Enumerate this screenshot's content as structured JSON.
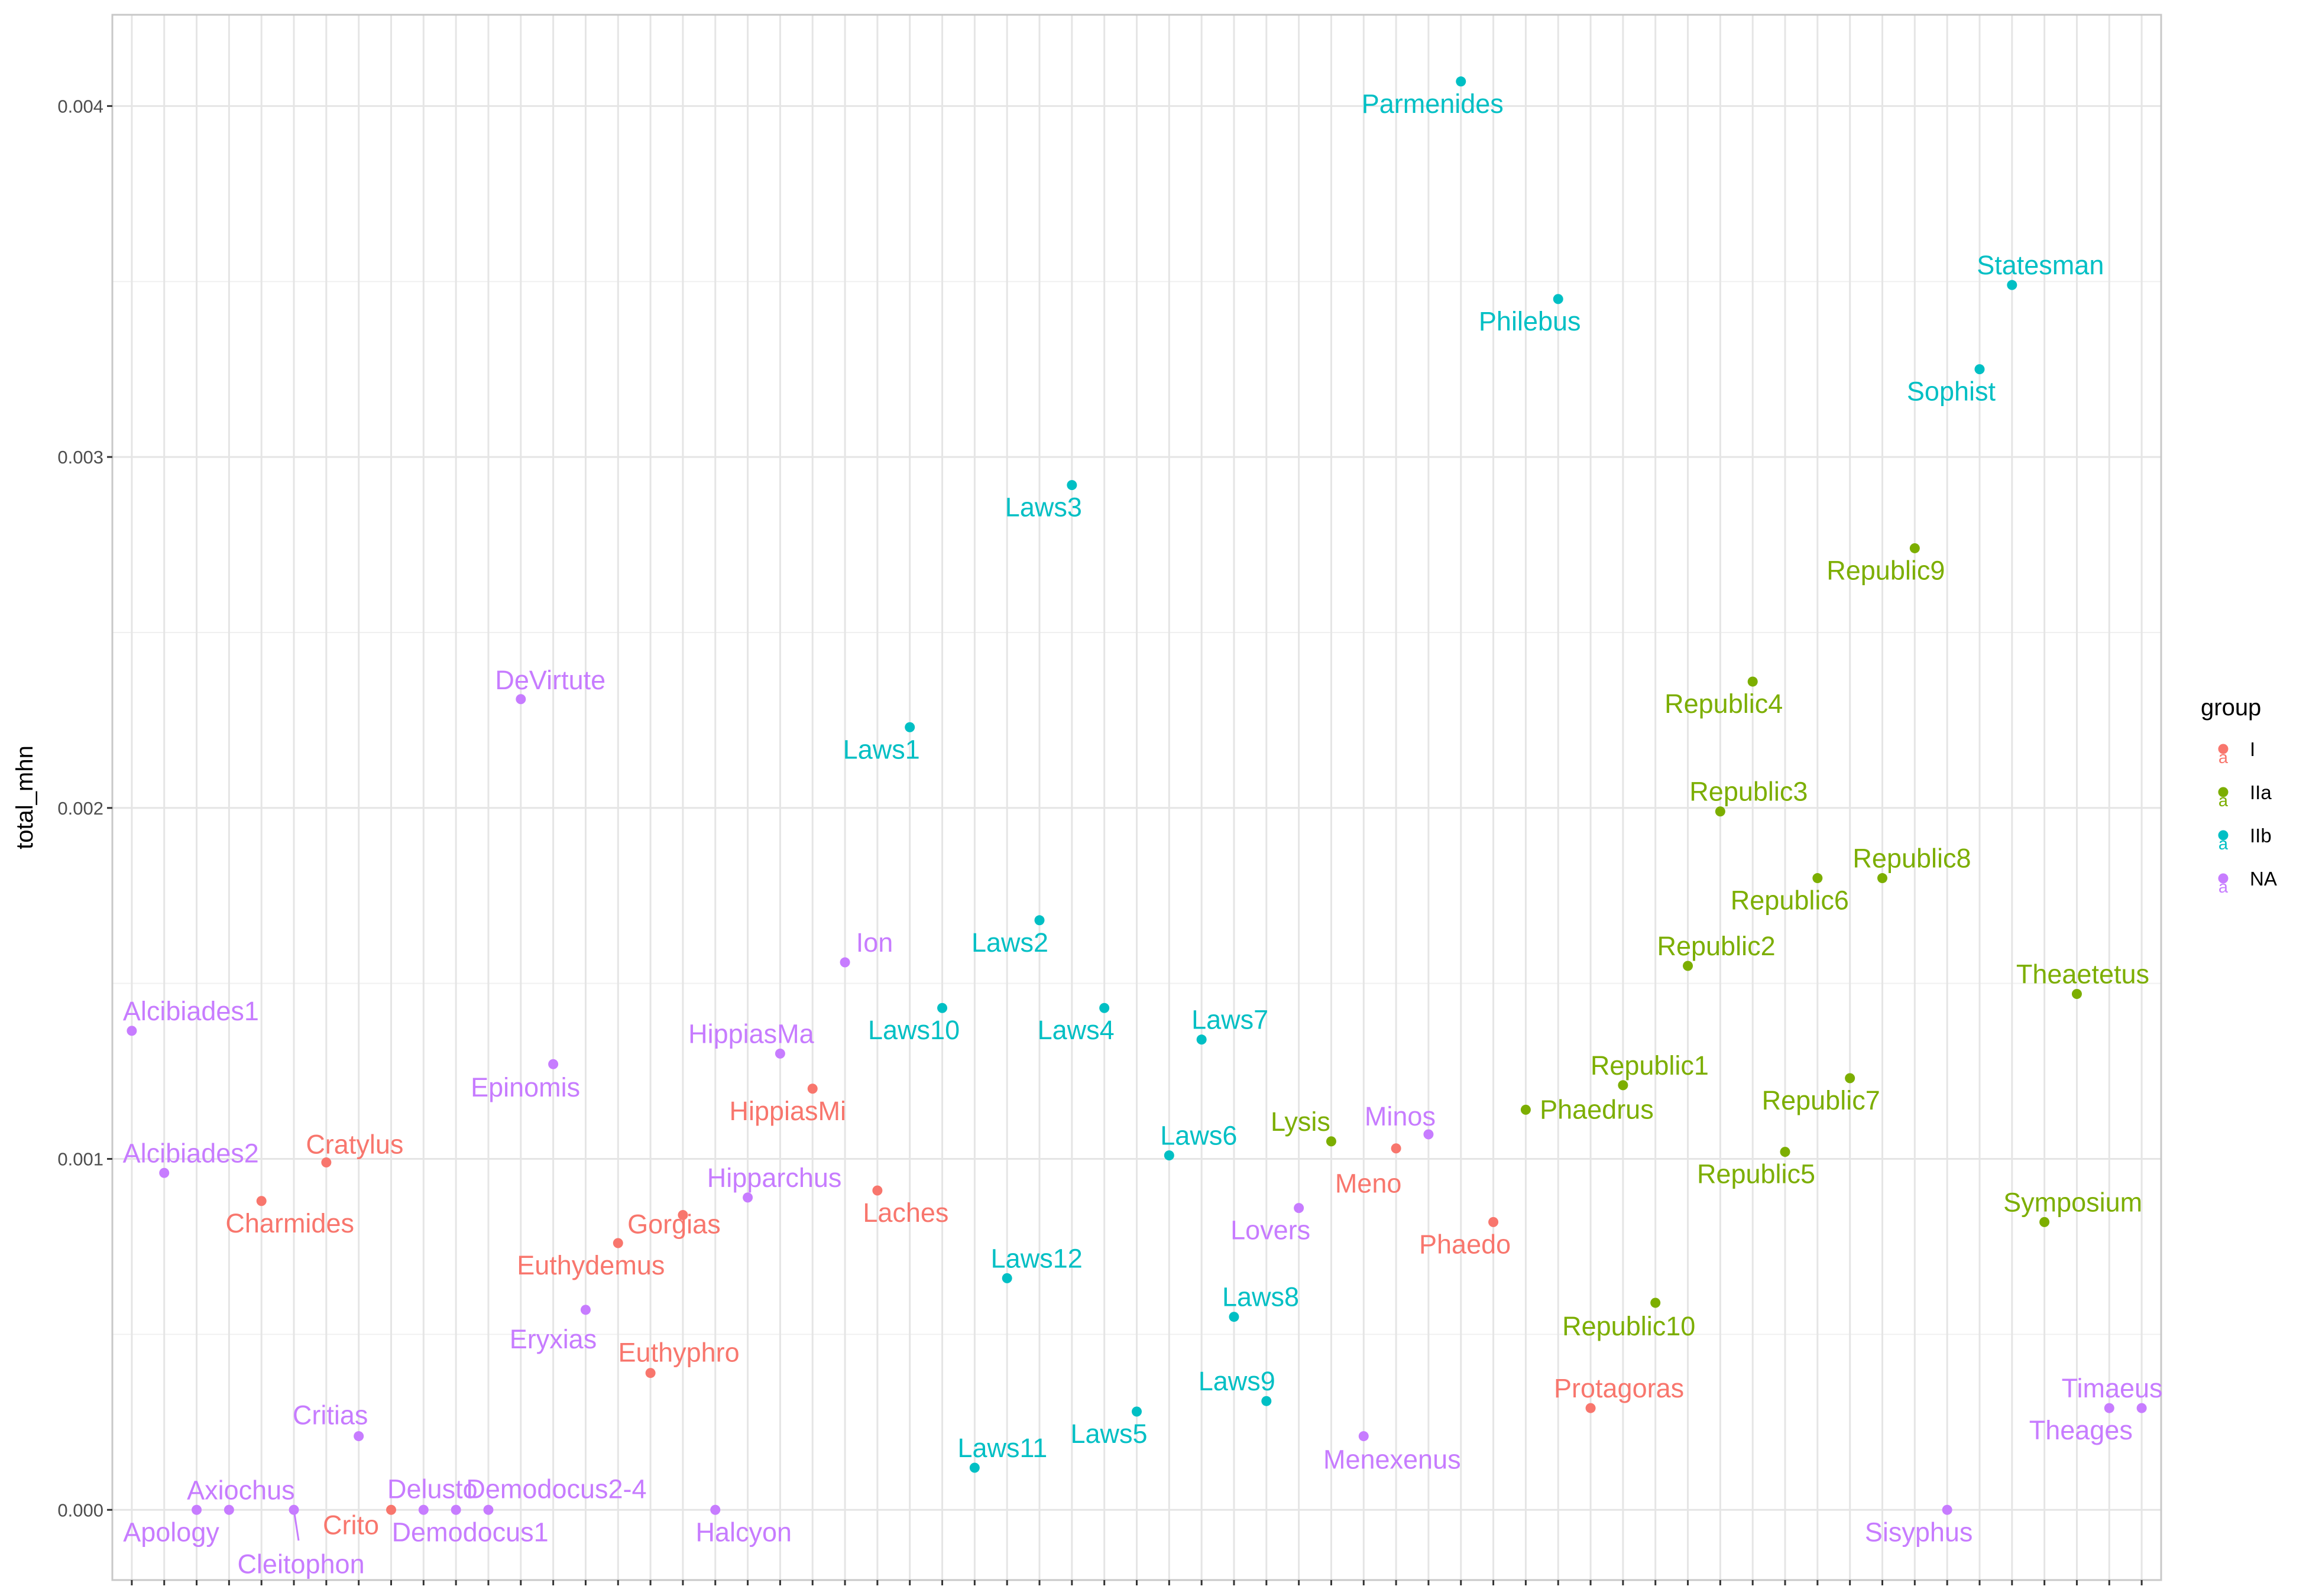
{
  "chart_data": {
    "type": "scatter",
    "title": "",
    "xlabel": "",
    "ylabel": "total_mhn",
    "ylim": [
      -0.0002,
      0.00426
    ],
    "y_ticks": [
      0.0,
      0.001,
      0.002,
      0.003,
      0.004
    ],
    "y_tick_labels": [
      "0.000",
      "0.001",
      "0.002",
      "0.003",
      "0.004"
    ],
    "grid": true,
    "legend": {
      "title": "group",
      "position": "right"
    },
    "colors": {
      "I": "#F8766D",
      "IIa": "#7CAE00",
      "IIb": "#00BFC4",
      "NA": "#C77CFF"
    },
    "groups": [
      "I",
      "IIa",
      "IIb",
      "NA"
    ],
    "points": [
      {
        "label": "Alcibiades1",
        "group": "NA",
        "x": 1,
        "y": 0.001365
      },
      {
        "label": "Alcibiades2",
        "group": "NA",
        "x": 2,
        "y": 0.00096
      },
      {
        "label": "Apology",
        "group": "NA",
        "x": 3,
        "y": 0.0
      },
      {
        "label": "Axiochus",
        "group": "NA",
        "x": 4,
        "y": 0.0
      },
      {
        "label": "Charmides",
        "group": "I",
        "x": 5,
        "y": 0.00088
      },
      {
        "label": "Cleitophon",
        "group": "NA",
        "x": 6,
        "y": 0.0
      },
      {
        "label": "Cratylus",
        "group": "I",
        "x": 7,
        "y": 0.00099
      },
      {
        "label": "Critias",
        "group": "NA",
        "x": 8,
        "y": 0.00021
      },
      {
        "label": "Crito",
        "group": "I",
        "x": 9,
        "y": 0.0
      },
      {
        "label": "Delusto",
        "group": "NA",
        "x": 10,
        "y": 0.0
      },
      {
        "label": "Demodocus1",
        "group": "NA",
        "x": 11,
        "y": 0.0
      },
      {
        "label": "Demodocus2-4",
        "group": "NA",
        "x": 12,
        "y": 0.0
      },
      {
        "label": "DeVirtute",
        "group": "NA",
        "x": 13,
        "y": 0.00231
      },
      {
        "label": "Epinomis",
        "group": "NA",
        "x": 14,
        "y": 0.00127
      },
      {
        "label": "Eryxias",
        "group": "NA",
        "x": 15,
        "y": 0.00057
      },
      {
        "label": "Euthydemus",
        "group": "I",
        "x": 16,
        "y": 0.00076
      },
      {
        "label": "Euthyphro",
        "group": "I",
        "x": 17,
        "y": 0.00039
      },
      {
        "label": "Gorgias",
        "group": "I",
        "x": 18,
        "y": 0.00084
      },
      {
        "label": "Halcyon",
        "group": "NA",
        "x": 19,
        "y": 0.0
      },
      {
        "label": "Hipparchus",
        "group": "NA",
        "x": 20,
        "y": 0.00089
      },
      {
        "label": "HippiasMa",
        "group": "NA",
        "x": 21,
        "y": 0.0013
      },
      {
        "label": "HippiasMi",
        "group": "I",
        "x": 22,
        "y": 0.0012
      },
      {
        "label": "Ion",
        "group": "NA",
        "x": 23,
        "y": 0.00156
      },
      {
        "label": "Laches",
        "group": "I",
        "x": 24,
        "y": 0.00091
      },
      {
        "label": "Laws1",
        "group": "IIb",
        "x": 25,
        "y": 0.00223
      },
      {
        "label": "Laws10",
        "group": "IIb",
        "x": 26,
        "y": 0.00143
      },
      {
        "label": "Laws11",
        "group": "IIb",
        "x": 27,
        "y": 0.00012
      },
      {
        "label": "Laws12",
        "group": "IIb",
        "x": 28,
        "y": 0.00066
      },
      {
        "label": "Laws2",
        "group": "IIb",
        "x": 29,
        "y": 0.00168
      },
      {
        "label": "Laws3",
        "group": "IIb",
        "x": 30,
        "y": 0.00292
      },
      {
        "label": "Laws4",
        "group": "IIb",
        "x": 31,
        "y": 0.00143
      },
      {
        "label": "Laws5",
        "group": "IIb",
        "x": 32,
        "y": 0.00028
      },
      {
        "label": "Laws6",
        "group": "IIb",
        "x": 33,
        "y": 0.00101
      },
      {
        "label": "Laws7",
        "group": "IIb",
        "x": 34,
        "y": 0.00134
      },
      {
        "label": "Laws8",
        "group": "IIb",
        "x": 35,
        "y": 0.00055
      },
      {
        "label": "Laws9",
        "group": "IIb",
        "x": 36,
        "y": 0.00031
      },
      {
        "label": "Lovers",
        "group": "NA",
        "x": 37,
        "y": 0.00086
      },
      {
        "label": "Lysis",
        "group": "IIa",
        "x": 38,
        "y": 0.00105
      },
      {
        "label": "Menexenus",
        "group": "NA",
        "x": 39,
        "y": 0.00021
      },
      {
        "label": "Meno",
        "group": "I",
        "x": 40,
        "y": 0.00103
      },
      {
        "label": "Minos",
        "group": "NA",
        "x": 41,
        "y": 0.00107
      },
      {
        "label": "Parmenides",
        "group": "IIb",
        "x": 42,
        "y": 0.00407
      },
      {
        "label": "Phaedo",
        "group": "I",
        "x": 43,
        "y": 0.00082
      },
      {
        "label": "Phaedrus",
        "group": "IIa",
        "x": 44,
        "y": 0.00114
      },
      {
        "label": "Philebus",
        "group": "IIb",
        "x": 45,
        "y": 0.00345
      },
      {
        "label": "Protagoras",
        "group": "I",
        "x": 46,
        "y": 0.00029
      },
      {
        "label": "Republic1",
        "group": "IIa",
        "x": 47,
        "y": 0.00121
      },
      {
        "label": "Republic10",
        "group": "IIa",
        "x": 48,
        "y": 0.00059
      },
      {
        "label": "Republic2",
        "group": "IIa",
        "x": 49,
        "y": 0.00155
      },
      {
        "label": "Republic3",
        "group": "IIa",
        "x": 50,
        "y": 0.00199
      },
      {
        "label": "Republic4",
        "group": "IIa",
        "x": 51,
        "y": 0.00236
      },
      {
        "label": "Republic5",
        "group": "IIa",
        "x": 52,
        "y": 0.00102
      },
      {
        "label": "Republic6",
        "group": "IIa",
        "x": 53,
        "y": 0.0018
      },
      {
        "label": "Republic7",
        "group": "IIa",
        "x": 54,
        "y": 0.00123
      },
      {
        "label": "Republic8",
        "group": "IIa",
        "x": 55,
        "y": 0.0018
      },
      {
        "label": "Republic9",
        "group": "IIa",
        "x": 56,
        "y": 0.00274
      },
      {
        "label": "Sisyphus",
        "group": "NA",
        "x": 57,
        "y": 0.0
      },
      {
        "label": "Sophist",
        "group": "IIb",
        "x": 58,
        "y": 0.00325
      },
      {
        "label": "Statesman",
        "group": "IIb",
        "x": 59,
        "y": 0.00349
      },
      {
        "label": "Symposium",
        "group": "IIa",
        "x": 60,
        "y": 0.00082
      },
      {
        "label": "Theaetetus",
        "group": "IIa",
        "x": 61,
        "y": 0.00147
      },
      {
        "label": "Theages",
        "group": "NA",
        "x": 62,
        "y": 0.00029
      },
      {
        "label": "Timaeus",
        "group": "NA",
        "x": 63,
        "y": 0.00029
      }
    ]
  }
}
